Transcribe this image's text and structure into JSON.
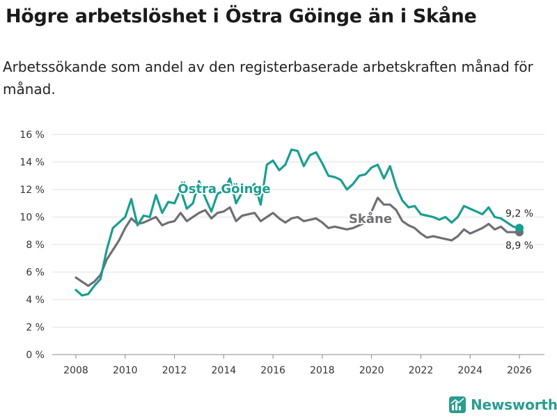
{
  "title": "Högre arbetslöshet i Östra Göinge än i Skåne",
  "subtitle": "Arbetssökande som andel av den registerbaserade arbetskraften månad för månad.",
  "brand": "Newsworthy",
  "colors": {
    "ostra": "#1a9e8f",
    "skane": "#6e6e75",
    "grid": "#e2e2e2",
    "axis": "#888888",
    "brand": "#2a9d8f"
  },
  "chart_data": {
    "type": "line",
    "title": "Högre arbetslöshet i Östra Göinge än i Skåne",
    "xlabel": "",
    "ylabel": "",
    "xlim": [
      2007.5,
      2026.6
    ],
    "ylim": [
      0,
      16
    ],
    "x_ticks": [
      2008,
      2010,
      2012,
      2014,
      2016,
      2018,
      2020,
      2022,
      2024,
      2026
    ],
    "x_tick_labels": [
      "2008",
      "2010",
      "2012",
      "2014",
      "2016",
      "2018",
      "2020",
      "2022",
      "2024",
      "2026"
    ],
    "y_ticks": [
      0,
      2,
      4,
      6,
      8,
      10,
      12,
      14,
      16
    ],
    "y_tick_labels": [
      "0 %",
      "2 %",
      "4 %",
      "6 %",
      "8 %",
      "10 %",
      "12 %",
      "14 %",
      "16 %"
    ],
    "grid": true,
    "series": [
      {
        "name": "Östra Göinge",
        "label": "Östra Göinge",
        "end_label": "9,2 %",
        "end_value": 9.2,
        "points": [
          [
            2008.0,
            4.7
          ],
          [
            2008.25,
            4.3
          ],
          [
            2008.5,
            4.4
          ],
          [
            2008.75,
            5.0
          ],
          [
            2009.0,
            5.5
          ],
          [
            2009.25,
            7.6
          ],
          [
            2009.5,
            9.2
          ],
          [
            2009.75,
            9.6
          ],
          [
            2010.0,
            10.0
          ],
          [
            2010.25,
            11.3
          ],
          [
            2010.5,
            9.4
          ],
          [
            2010.75,
            10.1
          ],
          [
            2011.0,
            10.0
          ],
          [
            2011.25,
            11.6
          ],
          [
            2011.5,
            10.3
          ],
          [
            2011.75,
            11.1
          ],
          [
            2012.0,
            11.0
          ],
          [
            2012.25,
            12.0
          ],
          [
            2012.5,
            10.6
          ],
          [
            2012.75,
            11.0
          ],
          [
            2013.0,
            12.6
          ],
          [
            2013.25,
            11.4
          ],
          [
            2013.5,
            10.4
          ],
          [
            2013.75,
            11.7
          ],
          [
            2014.0,
            11.9
          ],
          [
            2014.25,
            12.8
          ],
          [
            2014.5,
            11.0
          ],
          [
            2014.75,
            11.8
          ],
          [
            2015.0,
            11.9
          ],
          [
            2015.25,
            12.4
          ],
          [
            2015.5,
            10.9
          ],
          [
            2015.75,
            13.8
          ],
          [
            2016.0,
            14.1
          ],
          [
            2016.25,
            13.4
          ],
          [
            2016.5,
            13.8
          ],
          [
            2016.75,
            14.9
          ],
          [
            2017.0,
            14.8
          ],
          [
            2017.25,
            13.7
          ],
          [
            2017.5,
            14.5
          ],
          [
            2017.75,
            14.7
          ],
          [
            2018.0,
            13.9
          ],
          [
            2018.25,
            13.0
          ],
          [
            2018.5,
            12.9
          ],
          [
            2018.75,
            12.7
          ],
          [
            2019.0,
            12.0
          ],
          [
            2019.25,
            12.4
          ],
          [
            2019.5,
            13.0
          ],
          [
            2019.75,
            13.1
          ],
          [
            2020.0,
            13.6
          ],
          [
            2020.25,
            13.8
          ],
          [
            2020.5,
            12.8
          ],
          [
            2020.75,
            13.7
          ],
          [
            2021.0,
            12.2
          ],
          [
            2021.25,
            11.2
          ],
          [
            2021.5,
            10.7
          ],
          [
            2021.75,
            10.8
          ],
          [
            2022.0,
            10.2
          ],
          [
            2022.25,
            10.1
          ],
          [
            2022.5,
            10.0
          ],
          [
            2022.75,
            9.8
          ],
          [
            2023.0,
            10.0
          ],
          [
            2023.25,
            9.6
          ],
          [
            2023.5,
            10.0
          ],
          [
            2023.75,
            10.8
          ],
          [
            2024.0,
            10.6
          ],
          [
            2024.25,
            10.4
          ],
          [
            2024.5,
            10.2
          ],
          [
            2024.75,
            10.7
          ],
          [
            2025.0,
            10.0
          ],
          [
            2025.25,
            9.9
          ],
          [
            2025.5,
            9.6
          ],
          [
            2025.75,
            9.3
          ],
          [
            2026.0,
            9.2
          ]
        ]
      },
      {
        "name": "Skåne",
        "label": "Skåne",
        "end_label": "8,9 %",
        "end_value": 8.9,
        "points": [
          [
            2008.0,
            5.6
          ],
          [
            2008.25,
            5.3
          ],
          [
            2008.5,
            5.0
          ],
          [
            2008.75,
            5.3
          ],
          [
            2009.0,
            5.8
          ],
          [
            2009.25,
            6.9
          ],
          [
            2009.5,
            7.6
          ],
          [
            2009.75,
            8.3
          ],
          [
            2010.0,
            9.2
          ],
          [
            2010.25,
            9.9
          ],
          [
            2010.5,
            9.5
          ],
          [
            2010.75,
            9.6
          ],
          [
            2011.0,
            9.8
          ],
          [
            2011.25,
            10.0
          ],
          [
            2011.5,
            9.4
          ],
          [
            2011.75,
            9.6
          ],
          [
            2012.0,
            9.7
          ],
          [
            2012.25,
            10.3
          ],
          [
            2012.5,
            9.7
          ],
          [
            2012.75,
            10.0
          ],
          [
            2013.0,
            10.3
          ],
          [
            2013.25,
            10.5
          ],
          [
            2013.5,
            9.9
          ],
          [
            2013.75,
            10.3
          ],
          [
            2014.0,
            10.4
          ],
          [
            2014.25,
            10.7
          ],
          [
            2014.5,
            9.7
          ],
          [
            2014.75,
            10.1
          ],
          [
            2015.0,
            10.2
          ],
          [
            2015.25,
            10.3
          ],
          [
            2015.5,
            9.7
          ],
          [
            2015.75,
            10.0
          ],
          [
            2016.0,
            10.3
          ],
          [
            2016.25,
            9.9
          ],
          [
            2016.5,
            9.6
          ],
          [
            2016.75,
            9.9
          ],
          [
            2017.0,
            10.0
          ],
          [
            2017.25,
            9.7
          ],
          [
            2017.5,
            9.8
          ],
          [
            2017.75,
            9.9
          ],
          [
            2018.0,
            9.6
          ],
          [
            2018.25,
            9.2
          ],
          [
            2018.5,
            9.3
          ],
          [
            2018.75,
            9.2
          ],
          [
            2019.0,
            9.1
          ],
          [
            2019.25,
            9.2
          ],
          [
            2019.5,
            9.4
          ],
          [
            2019.75,
            9.6
          ],
          [
            2020.0,
            10.4
          ],
          [
            2020.25,
            11.4
          ],
          [
            2020.5,
            10.9
          ],
          [
            2020.75,
            10.9
          ],
          [
            2021.0,
            10.5
          ],
          [
            2021.25,
            9.7
          ],
          [
            2021.5,
            9.4
          ],
          [
            2021.75,
            9.2
          ],
          [
            2022.0,
            8.8
          ],
          [
            2022.25,
            8.5
          ],
          [
            2022.5,
            8.6
          ],
          [
            2022.75,
            8.5
          ],
          [
            2023.0,
            8.4
          ],
          [
            2023.25,
            8.3
          ],
          [
            2023.5,
            8.6
          ],
          [
            2023.75,
            9.1
          ],
          [
            2024.0,
            8.8
          ],
          [
            2024.25,
            9.0
          ],
          [
            2024.5,
            9.2
          ],
          [
            2024.75,
            9.5
          ],
          [
            2025.0,
            9.1
          ],
          [
            2025.25,
            9.3
          ],
          [
            2025.5,
            8.9
          ],
          [
            2025.75,
            8.9
          ],
          [
            2026.0,
            8.9
          ]
        ]
      }
    ]
  }
}
